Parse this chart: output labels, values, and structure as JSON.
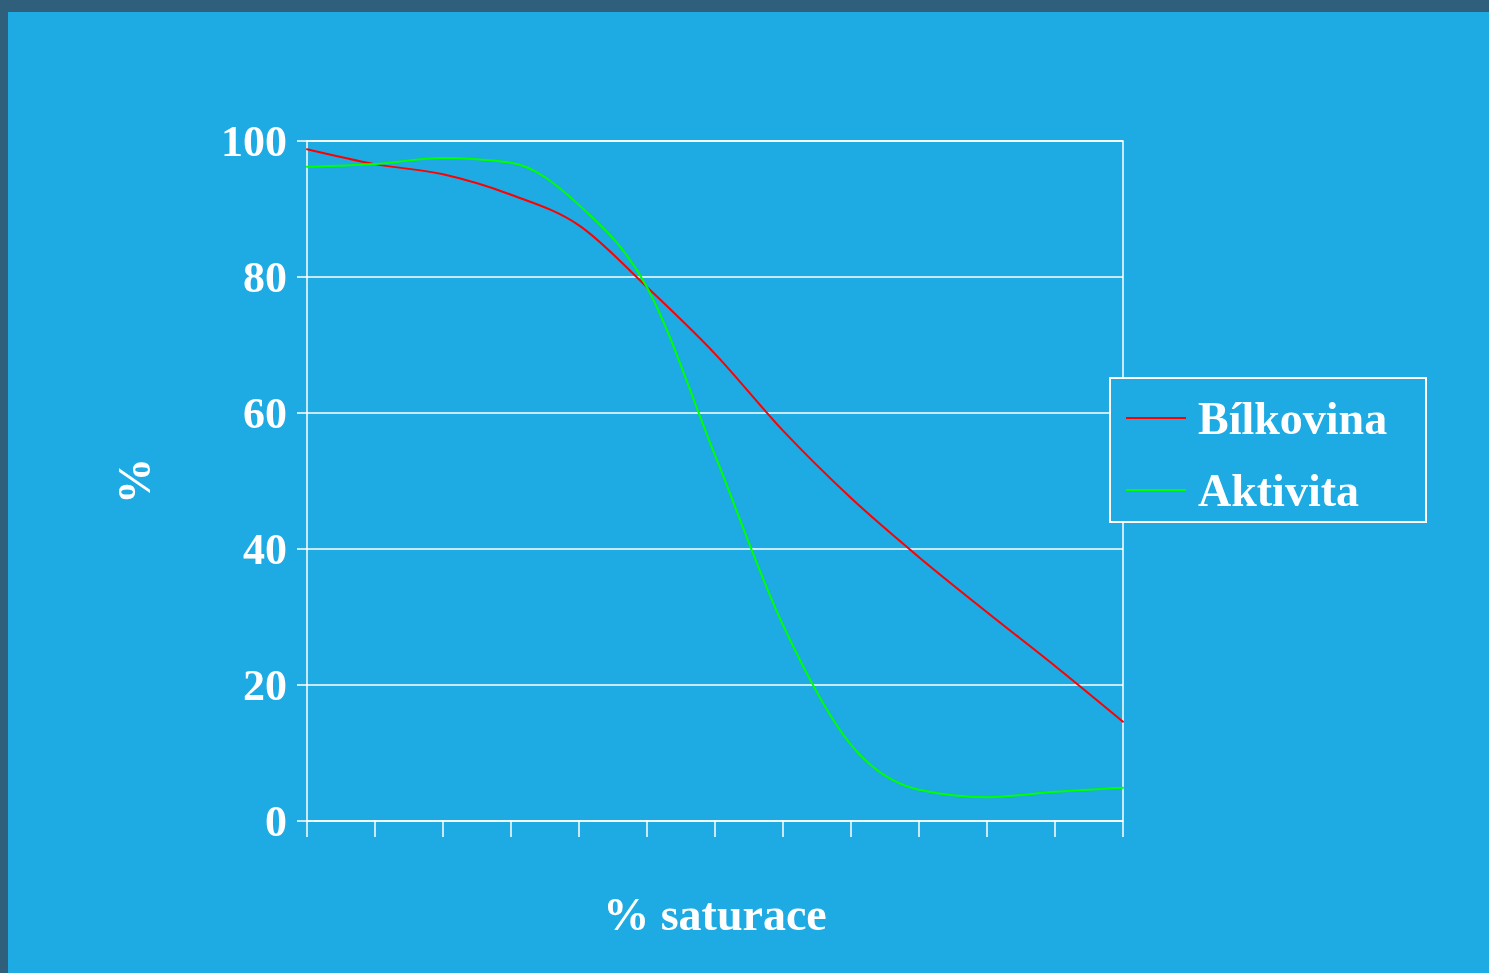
{
  "chart_data": {
    "type": "line",
    "xlabel": "% saturace",
    "ylabel": "%",
    "categories": [
      null,
      null,
      null,
      null,
      null,
      null,
      null,
      null,
      null,
      null,
      null,
      null,
      null
    ],
    "series": [
      {
        "name": "Bílkovina",
        "color": "#ff0000",
        "values": [
          98.8,
          96.6,
          95.1,
          92.1,
          87.6,
          78.5,
          68.7,
          57.4,
          47.5,
          38.8,
          30.7,
          22.8,
          14.6
        ]
      },
      {
        "name": "Aktivita",
        "color": "#00ff00",
        "values": [
          96.2,
          96.6,
          97.5,
          96.8,
          90.6,
          78.5,
          53.8,
          28.8,
          11.2,
          4.6,
          3.5,
          4.3,
          4.9
        ]
      }
    ],
    "ylim": [
      0,
      100
    ],
    "yticks": [
      0,
      20,
      40,
      60,
      80,
      100
    ],
    "grid": "y",
    "legend": "right",
    "tick_labels": "y",
    "marker": "none",
    "line_style": "solid"
  }
}
